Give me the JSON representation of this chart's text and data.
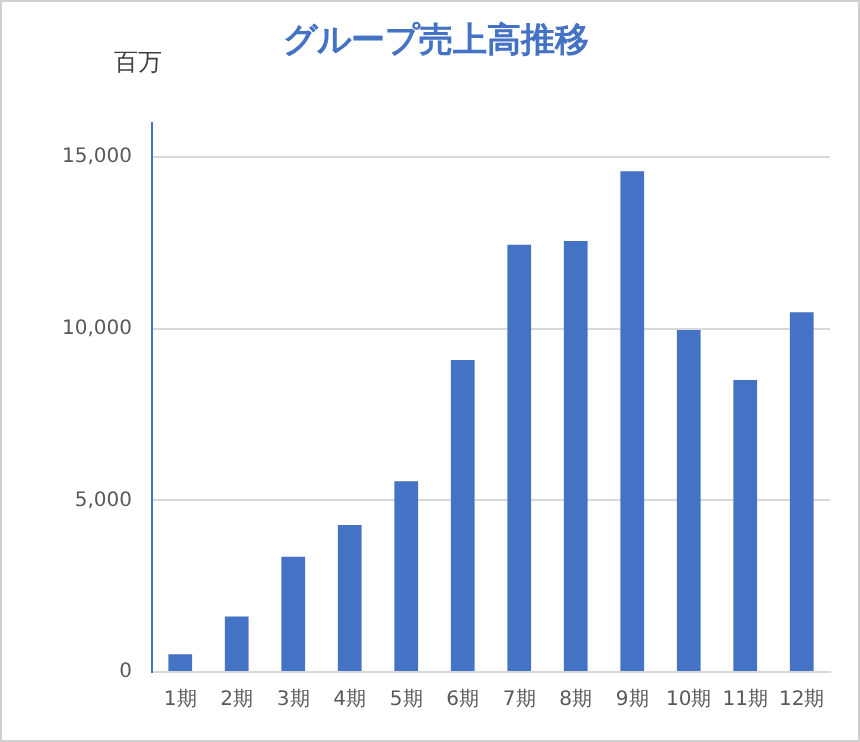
{
  "chart_data": {
    "type": "bar",
    "title": "グループ売上高推移",
    "ylabel": "百万",
    "categories": [
      "1期",
      "2期",
      "3期",
      "4期",
      "5期",
      "6期",
      "7期",
      "8期",
      "9期",
      "10期",
      "11期",
      "12期"
    ],
    "values": [
      520,
      1620,
      3360,
      4280,
      5560,
      9090,
      12450,
      12560,
      14590,
      9960,
      8510,
      10480
    ],
    "color": "#4472c4",
    "ylim": [
      0,
      16000
    ],
    "yticks": [
      0,
      {
        "value": 5000,
        "label": "5,000"
      },
      {
        "value": 10000,
        "label": "10,000"
      },
      {
        "value": 15000,
        "label": "15,000"
      }
    ],
    "grid": "y"
  }
}
